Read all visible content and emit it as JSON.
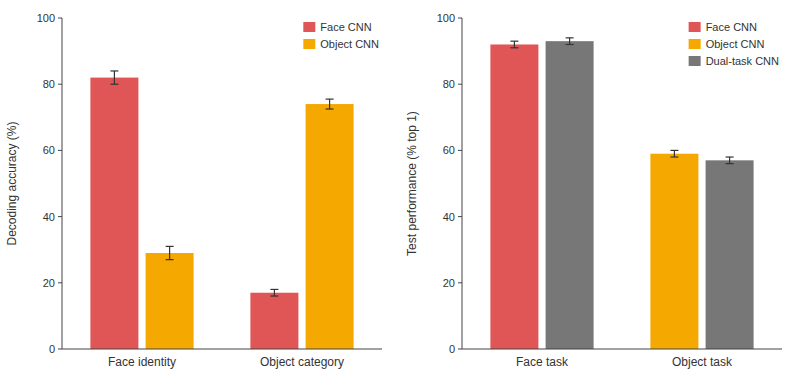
{
  "chart_data": [
    {
      "type": "bar",
      "ylabel": "Decoding accuracy (%)",
      "categories": [
        "Face identity",
        "Object category"
      ],
      "series": [
        {
          "name": "Face CNN",
          "color": "#E05555",
          "values": [
            82,
            17
          ],
          "errors": [
            2,
            1
          ]
        },
        {
          "name": "Object CNN",
          "color": "#F5A800",
          "values": [
            29,
            74
          ],
          "errors": [
            2,
            1.5
          ]
        }
      ],
      "ylim": [
        0,
        100
      ],
      "yticks": [
        0,
        20,
        40,
        60,
        80,
        100
      ],
      "grid": false,
      "legend": "upper right"
    },
    {
      "type": "bar",
      "ylabel": "Test performance (% top 1)",
      "categories": [
        "Face task",
        "Object task"
      ],
      "series": [
        {
          "name": "Face CNN",
          "color": "#E05555",
          "values": [
            92,
            null
          ],
          "errors": [
            1,
            null
          ]
        },
        {
          "name": "Object CNN",
          "color": "#F5A800",
          "values": [
            null,
            59
          ],
          "errors": [
            null,
            1
          ]
        },
        {
          "name": "Dual-task CNN",
          "color": "#777777",
          "values": [
            93,
            57
          ],
          "errors": [
            1,
            1
          ]
        }
      ],
      "ylim": [
        0,
        100
      ],
      "yticks": [
        0,
        20,
        40,
        60,
        80,
        100
      ],
      "grid": false,
      "legend": "upper right"
    }
  ]
}
